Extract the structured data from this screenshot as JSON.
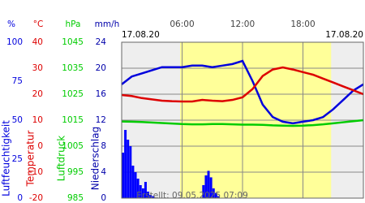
{
  "chart_data": {
    "type": "line",
    "date_left": "17.08.20",
    "date_right": "17.08.20",
    "footer": "Erstellt: 09.05.2025 07:09",
    "xlim": [
      0,
      24
    ],
    "xticks": [
      {
        "value": 6,
        "label": "06:00"
      },
      {
        "value": 12,
        "label": "12:00"
      },
      {
        "value": 18,
        "label": "18:00"
      }
    ],
    "daylight": [
      5.8,
      20.8
    ],
    "x": [
      0,
      1,
      2,
      3,
      4,
      5,
      6,
      7,
      8,
      9,
      10,
      11,
      12,
      13,
      14,
      15,
      16,
      17,
      18,
      19,
      20,
      21,
      22,
      23,
      24
    ],
    "axes": [
      {
        "unit": "%",
        "label": "Luftfeuchtigkeit",
        "color": "#0000dd",
        "ylim": [
          0,
          100
        ],
        "yticks": [
          0,
          25,
          50,
          75,
          100
        ],
        "values": [
          73,
          78,
          80,
          82,
          84,
          84,
          84,
          85,
          85,
          84,
          85,
          86,
          88,
          75,
          60,
          52,
          49,
          48,
          49,
          50,
          52,
          57,
          63,
          69,
          73
        ]
      },
      {
        "unit": "°C",
        "label": "Temperatur",
        "color": "#dd0000",
        "ylim": [
          -20,
          40
        ],
        "yticks": [
          -20,
          -10,
          0,
          10,
          20,
          30,
          40
        ],
        "grid": true,
        "values": [
          19.7,
          19.3,
          18.5,
          18,
          17.5,
          17.3,
          17.2,
          17.2,
          17.8,
          17.5,
          17.3,
          17.8,
          18.8,
          22,
          27,
          29.5,
          30.3,
          29.5,
          28.5,
          27.5,
          26,
          24.5,
          23,
          21.5,
          20
        ]
      },
      {
        "unit": "hPa",
        "label": "Luftdruck",
        "color": "#00cc00",
        "ylim": [
          985,
          1045
        ],
        "yticks": [
          985,
          995,
          1005,
          1015,
          1025,
          1035,
          1045
        ],
        "values": [
          1014.5,
          1014.4,
          1014.3,
          1014.1,
          1013.9,
          1013.7,
          1013.5,
          1013.4,
          1013.4,
          1013.5,
          1013.5,
          1013.4,
          1013.3,
          1013.3,
          1013.2,
          1013,
          1012.9,
          1012.8,
          1012.9,
          1013.1,
          1013.4,
          1013.8,
          1014.2,
          1014.6,
          1015
        ]
      },
      {
        "unit": "mm/h",
        "label": "Niederschlag",
        "color": "#0000aa",
        "bar_color": "#0000ff",
        "type": "bar",
        "ylim": [
          0,
          24
        ],
        "yticks": [
          0,
          4,
          8,
          12,
          16,
          20,
          24
        ],
        "x": [
          0,
          0.25,
          0.5,
          0.75,
          1,
          1.25,
          1.5,
          1.75,
          2,
          2.25,
          2.5,
          2.75,
          3,
          8,
          8.25,
          8.5,
          8.75,
          9,
          9.25,
          9.5
        ],
        "values": [
          7,
          10.5,
          9,
          8,
          5,
          4,
          3,
          2,
          1.5,
          2.5,
          1,
          0.5,
          0.3,
          2,
          3.5,
          4.2,
          3.2,
          1.5,
          0.8,
          0.3
        ]
      }
    ]
  }
}
